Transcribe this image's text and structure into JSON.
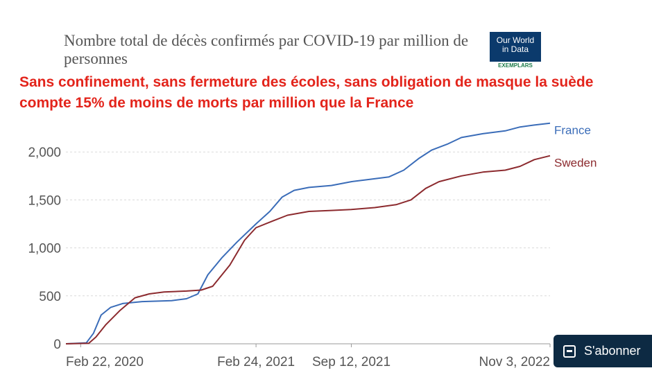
{
  "header": {
    "title": "Nombre total de décès confirmés par COVID-19 par million de personnes",
    "logo": {
      "line1": "Our World",
      "line2": "in Data",
      "line3": "EXEMPLARS"
    }
  },
  "headline": "Sans confinement, sans fermeture des écoles, sans obligation de masque la suède compte 15% de moins de morts par million que la France",
  "subscribe_button": {
    "label": "S'abonner",
    "icon": "subscribe-icon"
  },
  "colors": {
    "france": "#3a6cb8",
    "sweden": "#8c2a2e",
    "grid": "#d9d9d9",
    "headline": "#e3241b"
  },
  "chart_data": {
    "type": "line",
    "title": "Nombre total de décès confirmés par COVID-19 par million de personnes",
    "xlabel": "",
    "ylabel": "",
    "xlim": [
      "2020-01-22",
      "2022-11-03"
    ],
    "ylim": [
      0,
      2300
    ],
    "yticks": [
      0,
      500,
      1000,
      1500,
      2000
    ],
    "ytick_labels": [
      "0",
      "500",
      "1,000",
      "1,500",
      "2,000"
    ],
    "xticks": [
      "2020-02-22",
      "2021-02-24",
      "2021-09-12",
      "2022-11-03"
    ],
    "xtick_labels": [
      "Feb 22, 2020",
      "Feb 24, 2021",
      "Sep 12, 2021",
      "Nov 3, 2022"
    ],
    "grid": true,
    "legend": "labels at line ends",
    "series": [
      {
        "name": "France",
        "color": "#3a6cb8",
        "points": [
          [
            "2020-01-22",
            0
          ],
          [
            "2020-03-05",
            10
          ],
          [
            "2020-03-20",
            110
          ],
          [
            "2020-04-05",
            300
          ],
          [
            "2020-04-25",
            380
          ],
          [
            "2020-05-20",
            420
          ],
          [
            "2020-06-30",
            440
          ],
          [
            "2020-08-31",
            450
          ],
          [
            "2020-10-01",
            470
          ],
          [
            "2020-10-25",
            520
          ],
          [
            "2020-11-15",
            720
          ],
          [
            "2020-12-15",
            900
          ],
          [
            "2021-01-15",
            1060
          ],
          [
            "2021-02-24",
            1250
          ],
          [
            "2021-03-25",
            1380
          ],
          [
            "2021-04-20",
            1530
          ],
          [
            "2021-05-15",
            1600
          ],
          [
            "2021-06-15",
            1630
          ],
          [
            "2021-08-01",
            1650
          ],
          [
            "2021-09-12",
            1690
          ],
          [
            "2021-10-15",
            1710
          ],
          [
            "2021-11-30",
            1740
          ],
          [
            "2021-12-31",
            1810
          ],
          [
            "2022-01-31",
            1930
          ],
          [
            "2022-02-28",
            2020
          ],
          [
            "2022-04-01",
            2080
          ],
          [
            "2022-05-01",
            2150
          ],
          [
            "2022-06-15",
            2190
          ],
          [
            "2022-08-01",
            2220
          ],
          [
            "2022-09-01",
            2260
          ],
          [
            "2022-10-01",
            2280
          ],
          [
            "2022-11-03",
            2300
          ]
        ]
      },
      {
        "name": "Sweden",
        "color": "#8c2a2e",
        "points": [
          [
            "2020-01-22",
            0
          ],
          [
            "2020-03-10",
            5
          ],
          [
            "2020-03-25",
            70
          ],
          [
            "2020-04-15",
            200
          ],
          [
            "2020-05-15",
            350
          ],
          [
            "2020-06-15",
            480
          ],
          [
            "2020-07-15",
            520
          ],
          [
            "2020-08-15",
            540
          ],
          [
            "2020-10-01",
            550
          ],
          [
            "2020-11-01",
            560
          ],
          [
            "2020-11-25",
            600
          ],
          [
            "2020-12-31",
            820
          ],
          [
            "2021-01-31",
            1080
          ],
          [
            "2021-02-24",
            1210
          ],
          [
            "2021-03-31",
            1280
          ],
          [
            "2021-05-01",
            1340
          ],
          [
            "2021-06-15",
            1380
          ],
          [
            "2021-08-01",
            1390
          ],
          [
            "2021-09-12",
            1400
          ],
          [
            "2021-10-31",
            1420
          ],
          [
            "2021-12-15",
            1450
          ],
          [
            "2022-01-15",
            1500
          ],
          [
            "2022-02-15",
            1620
          ],
          [
            "2022-03-15",
            1690
          ],
          [
            "2022-05-01",
            1750
          ],
          [
            "2022-06-15",
            1790
          ],
          [
            "2022-08-01",
            1810
          ],
          [
            "2022-09-01",
            1850
          ],
          [
            "2022-10-01",
            1920
          ],
          [
            "2022-11-03",
            1960
          ]
        ]
      }
    ]
  }
}
